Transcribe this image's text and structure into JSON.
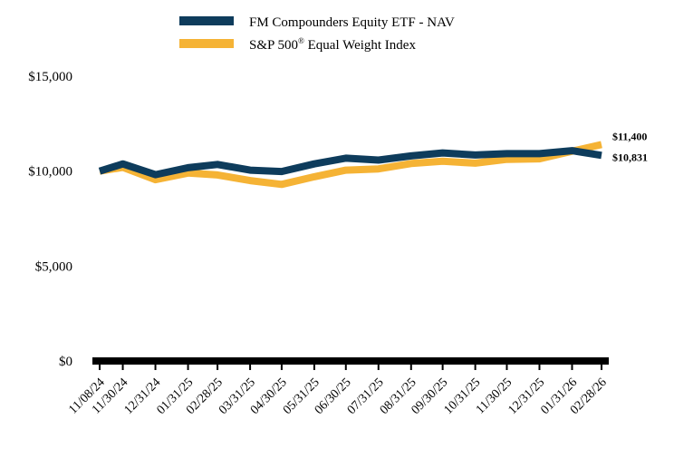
{
  "chart_data": {
    "type": "line",
    "title": "",
    "xlabel": "",
    "ylabel": "",
    "ylim": [
      0,
      15000
    ],
    "y_ticks": [
      {
        "value": 0,
        "label": "$0"
      },
      {
        "value": 5000,
        "label": "$5,000"
      },
      {
        "value": 10000,
        "label": "$10,000"
      },
      {
        "value": 15000,
        "label": "$15,000"
      }
    ],
    "x": [
      0,
      22,
      53,
      84,
      112,
      143,
      173,
      204,
      234,
      265,
      296,
      326,
      357,
      387,
      418,
      449,
      477
    ],
    "x_tick_labels": [
      "11/08/24",
      "11/30/24",
      "12/31/24",
      "01/31/25",
      "02/28/25",
      "03/31/25",
      "04/30/25",
      "05/31/25",
      "06/30/25",
      "07/31/25",
      "08/31/25",
      "09/30/25",
      "10/31/25",
      "11/30/25",
      "12/31/25",
      "01/31/26",
      "02/28/26"
    ],
    "grid": false,
    "legend_position": "top",
    "series": [
      {
        "name": "FM Compounders Equity ETF - NAV",
        "color": "#0e3c5c",
        "values": [
          10000,
          10380,
          9810,
          10180,
          10350,
          10050,
          9980,
          10380,
          10680,
          10580,
          10800,
          10960,
          10850,
          10920,
          10920,
          11080,
          10831
        ],
        "end_label": "$10,831"
      },
      {
        "name": "S&P 500® Equal Weight Index",
        "name_main": "S&P 500",
        "name_sup": "®",
        "name_rest": " Equal Weight Index",
        "color": "#f5b335",
        "values": [
          10000,
          10200,
          9550,
          9900,
          9800,
          9500,
          9300,
          9700,
          10050,
          10120,
          10400,
          10520,
          10420,
          10620,
          10650,
          11050,
          11400
        ],
        "end_label": "$11,400"
      }
    ]
  }
}
